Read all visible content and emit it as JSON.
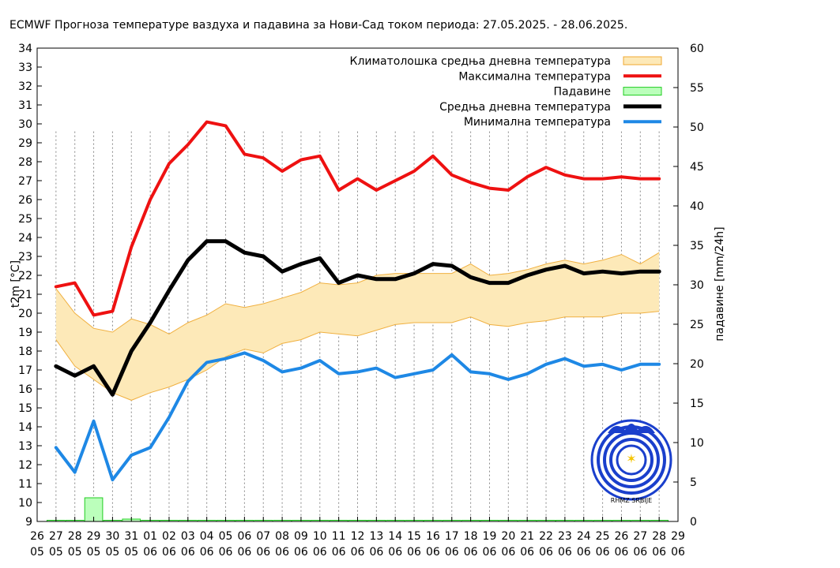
{
  "chart_data": {
    "type": "line",
    "title": "ECMWF Прогноза температуре ваздуха и падавина за Нови-Сад током периода: 27.05.2025. - 28.06.2025.",
    "ylabel": "t2m [°C]",
    "y2label": "падавине [mm/24h]",
    "ylim": [
      9,
      34
    ],
    "y2lim": [
      0,
      60
    ],
    "yticks": [
      9,
      10,
      11,
      12,
      13,
      14,
      15,
      16,
      17,
      18,
      19,
      20,
      21,
      22,
      23,
      24,
      25,
      26,
      27,
      28,
      29,
      30,
      31,
      32,
      33,
      34
    ],
    "y2ticks": [
      0,
      5,
      10,
      15,
      20,
      25,
      30,
      35,
      40,
      45,
      50,
      55,
      60
    ],
    "grid": "vertical dotted lines per day",
    "legend_position": "top-right",
    "x_tick_labels": [
      [
        "26",
        "05"
      ],
      [
        "27",
        "05"
      ],
      [
        "28",
        "05"
      ],
      [
        "29",
        "05"
      ],
      [
        "30",
        "05"
      ],
      [
        "31",
        "05"
      ],
      [
        "01",
        "06"
      ],
      [
        "02",
        "06"
      ],
      [
        "03",
        "06"
      ],
      [
        "04",
        "06"
      ],
      [
        "05",
        "06"
      ],
      [
        "06",
        "06"
      ],
      [
        "07",
        "06"
      ],
      [
        "08",
        "06"
      ],
      [
        "09",
        "06"
      ],
      [
        "10",
        "06"
      ],
      [
        "11",
        "06"
      ],
      [
        "12",
        "06"
      ],
      [
        "13",
        "06"
      ],
      [
        "14",
        "06"
      ],
      [
        "15",
        "06"
      ],
      [
        "16",
        "06"
      ],
      [
        "17",
        "06"
      ],
      [
        "18",
        "06"
      ],
      [
        "19",
        "06"
      ],
      [
        "20",
        "06"
      ],
      [
        "21",
        "06"
      ],
      [
        "22",
        "06"
      ],
      [
        "23",
        "06"
      ],
      [
        "24",
        "06"
      ],
      [
        "25",
        "06"
      ],
      [
        "26",
        "06"
      ],
      [
        "27",
        "06"
      ],
      [
        "28",
        "06"
      ],
      [
        "29",
        "06"
      ]
    ],
    "x": [
      0,
      0.5,
      1,
      1.5,
      2,
      2.5,
      3,
      3.5,
      4,
      4.5,
      5,
      5.5,
      6,
      6.5,
      7,
      7.5,
      8,
      8.5,
      9,
      9.5,
      10,
      10.5,
      11,
      11.5,
      12,
      12.5,
      13,
      13.5,
      14,
      14.5,
      15,
      15.5,
      16,
      16.5,
      17,
      17.5,
      18,
      18.5,
      19,
      19.5,
      20,
      20.5,
      21,
      21.5,
      22,
      22.5,
      23,
      23.5,
      24,
      24.5,
      25,
      25.5,
      26,
      26.5,
      27,
      27.5,
      28,
      28.5,
      29,
      29.5,
      30,
      30.5,
      31,
      31.5,
      32,
      32.5
    ],
    "legend": [
      {
        "label": "Климатолошка средња дневна температура",
        "color": "#fde9b8",
        "border": "#f0a830",
        "kind": "box"
      },
      {
        "label": "Максимална температура",
        "color": "#ee1111",
        "kind": "line"
      },
      {
        "label": "Падавине",
        "color": "#bbffbb",
        "border": "#22cc22",
        "kind": "box"
      },
      {
        "label": "Средња дневна температура",
        "color": "#000000",
        "kind": "line"
      },
      {
        "label": "Минимална температура",
        "color": "#1e88e5",
        "kind": "line"
      }
    ],
    "series": [
      {
        "name": "Максимална температура",
        "color": "#ee1111",
        "width": 4,
        "points": [
          [
            1,
            21.4
          ],
          [
            2,
            21.6
          ],
          [
            3,
            19.9
          ],
          [
            4,
            20.1
          ],
          [
            5,
            23.5
          ],
          [
            6,
            26.0
          ],
          [
            7,
            27.9
          ],
          [
            8,
            28.9
          ],
          [
            9,
            30.1
          ],
          [
            10,
            29.9
          ],
          [
            11,
            28.4
          ],
          [
            12,
            28.2
          ],
          [
            13,
            27.5
          ],
          [
            14,
            28.1
          ],
          [
            15,
            28.3
          ],
          [
            16,
            26.5
          ],
          [
            17,
            27.1
          ],
          [
            18,
            26.5
          ],
          [
            19,
            27.0
          ],
          [
            20,
            27.5
          ],
          [
            21,
            28.3
          ],
          [
            22,
            27.3
          ],
          [
            23,
            26.9
          ],
          [
            24,
            26.6
          ],
          [
            25,
            26.5
          ],
          [
            26,
            27.2
          ],
          [
            27,
            27.7
          ],
          [
            28,
            27.3
          ],
          [
            29,
            27.1
          ],
          [
            30,
            27.1
          ],
          [
            31,
            27.2
          ],
          [
            32,
            27.1
          ],
          [
            33,
            27.1
          ]
        ]
      },
      {
        "name": "Средња дневна температура",
        "color": "#000000",
        "width": 5,
        "points": [
          [
            1,
            17.2
          ],
          [
            2,
            16.7
          ],
          [
            3,
            17.2
          ],
          [
            4,
            15.7
          ],
          [
            5,
            18.0
          ],
          [
            6,
            19.5
          ],
          [
            7,
            21.2
          ],
          [
            8,
            22.8
          ],
          [
            9,
            23.8
          ],
          [
            10,
            23.8
          ],
          [
            11,
            23.2
          ],
          [
            12,
            23.0
          ],
          [
            13,
            22.2
          ],
          [
            14,
            22.6
          ],
          [
            15,
            22.9
          ],
          [
            16,
            21.6
          ],
          [
            17,
            22.0
          ],
          [
            18,
            21.8
          ],
          [
            19,
            21.8
          ],
          [
            20,
            22.1
          ],
          [
            21,
            22.6
          ],
          [
            22,
            22.5
          ],
          [
            23,
            21.9
          ],
          [
            24,
            21.6
          ],
          [
            25,
            21.6
          ],
          [
            26,
            22.0
          ],
          [
            27,
            22.3
          ],
          [
            28,
            22.5
          ],
          [
            29,
            22.1
          ],
          [
            30,
            22.2
          ],
          [
            31,
            22.1
          ],
          [
            32,
            22.2
          ],
          [
            33,
            22.2
          ]
        ]
      },
      {
        "name": "Минимална температура",
        "color": "#1e88e5",
        "width": 4,
        "points": [
          [
            1,
            12.9
          ],
          [
            2,
            11.6
          ],
          [
            3,
            14.3
          ],
          [
            4,
            11.2
          ],
          [
            5,
            12.5
          ],
          [
            6,
            12.9
          ],
          [
            7,
            14.5
          ],
          [
            8,
            16.4
          ],
          [
            9,
            17.4
          ],
          [
            10,
            17.6
          ],
          [
            11,
            17.9
          ],
          [
            12,
            17.5
          ],
          [
            13,
            16.9
          ],
          [
            14,
            17.1
          ],
          [
            15,
            17.5
          ],
          [
            16,
            16.8
          ],
          [
            17,
            16.9
          ],
          [
            18,
            17.1
          ],
          [
            19,
            16.6
          ],
          [
            20,
            16.8
          ],
          [
            21,
            17.0
          ],
          [
            22,
            17.8
          ],
          [
            23,
            16.9
          ],
          [
            24,
            16.8
          ],
          [
            25,
            16.5
          ],
          [
            26,
            16.8
          ],
          [
            27,
            17.3
          ],
          [
            28,
            17.6
          ],
          [
            29,
            17.2
          ],
          [
            30,
            17.3
          ],
          [
            31,
            17.0
          ],
          [
            32,
            17.3
          ],
          [
            33,
            17.3
          ]
        ]
      }
    ],
    "climatology_band": {
      "name": "Климатолошка средња дневна температура",
      "upper": [
        [
          1,
          21.3
        ],
        [
          2,
          20.0
        ],
        [
          3,
          19.2
        ],
        [
          4,
          19.0
        ],
        [
          5,
          19.7
        ],
        [
          6,
          19.4
        ],
        [
          7,
          18.9
        ],
        [
          8,
          19.5
        ],
        [
          9,
          19.9
        ],
        [
          10,
          20.5
        ],
        [
          11,
          20.3
        ],
        [
          12,
          20.5
        ],
        [
          13,
          20.8
        ],
        [
          14,
          21.1
        ],
        [
          15,
          21.6
        ],
        [
          16,
          21.5
        ],
        [
          17,
          21.6
        ],
        [
          18,
          22.0
        ],
        [
          19,
          22.1
        ],
        [
          20,
          22.1
        ],
        [
          21,
          22.1
        ],
        [
          22,
          22.1
        ],
        [
          23,
          22.6
        ],
        [
          24,
          22.0
        ],
        [
          25,
          22.1
        ],
        [
          26,
          22.3
        ],
        [
          27,
          22.6
        ],
        [
          28,
          22.8
        ],
        [
          29,
          22.6
        ],
        [
          30,
          22.8
        ],
        [
          31,
          23.1
        ],
        [
          32,
          22.6
        ],
        [
          33,
          23.2
        ]
      ],
      "lower": [
        [
          1,
          18.6
        ],
        [
          2,
          17.2
        ],
        [
          3,
          16.5
        ],
        [
          4,
          15.8
        ],
        [
          5,
          15.4
        ],
        [
          6,
          15.8
        ],
        [
          7,
          16.1
        ],
        [
          8,
          16.5
        ],
        [
          9,
          17.0
        ],
        [
          10,
          17.7
        ],
        [
          11,
          18.1
        ],
        [
          12,
          17.9
        ],
        [
          13,
          18.4
        ],
        [
          14,
          18.6
        ],
        [
          15,
          19.0
        ],
        [
          16,
          18.9
        ],
        [
          17,
          18.8
        ],
        [
          18,
          19.1
        ],
        [
          19,
          19.4
        ],
        [
          20,
          19.5
        ],
        [
          21,
          19.5
        ],
        [
          22,
          19.5
        ],
        [
          23,
          19.8
        ],
        [
          24,
          19.4
        ],
        [
          25,
          19.3
        ],
        [
          26,
          19.5
        ],
        [
          27,
          19.6
        ],
        [
          28,
          19.8
        ],
        [
          29,
          19.8
        ],
        [
          30,
          19.8
        ],
        [
          31,
          20.0
        ],
        [
          32,
          20.0
        ],
        [
          33,
          20.1
        ]
      ]
    },
    "precipitation": {
      "name": "Падавине",
      "bars": [
        [
          1,
          0.1
        ],
        [
          2,
          0.1
        ],
        [
          3,
          3.0
        ],
        [
          4,
          0.1
        ],
        [
          5,
          0.3
        ],
        [
          6,
          0
        ],
        [
          7,
          0
        ],
        [
          8,
          0
        ],
        [
          9,
          0
        ],
        [
          10,
          0
        ],
        [
          11,
          0
        ],
        [
          12,
          0
        ],
        [
          13,
          0
        ],
        [
          14,
          0
        ],
        [
          15,
          0
        ],
        [
          16,
          0
        ],
        [
          17,
          0.1
        ],
        [
          18,
          0.1
        ],
        [
          19,
          0
        ],
        [
          20,
          0
        ],
        [
          21,
          0.1
        ],
        [
          22,
          0
        ],
        [
          23,
          0.1
        ],
        [
          24,
          0.1
        ],
        [
          25,
          0
        ],
        [
          26,
          0.1
        ],
        [
          27,
          0
        ],
        [
          28,
          0.1
        ],
        [
          29,
          0.1
        ],
        [
          30,
          0.1
        ],
        [
          31,
          0.1
        ],
        [
          32,
          0.1
        ],
        [
          33,
          0.1
        ]
      ]
    }
  },
  "logo": {
    "caption": "RHMZ SRBIJE"
  }
}
